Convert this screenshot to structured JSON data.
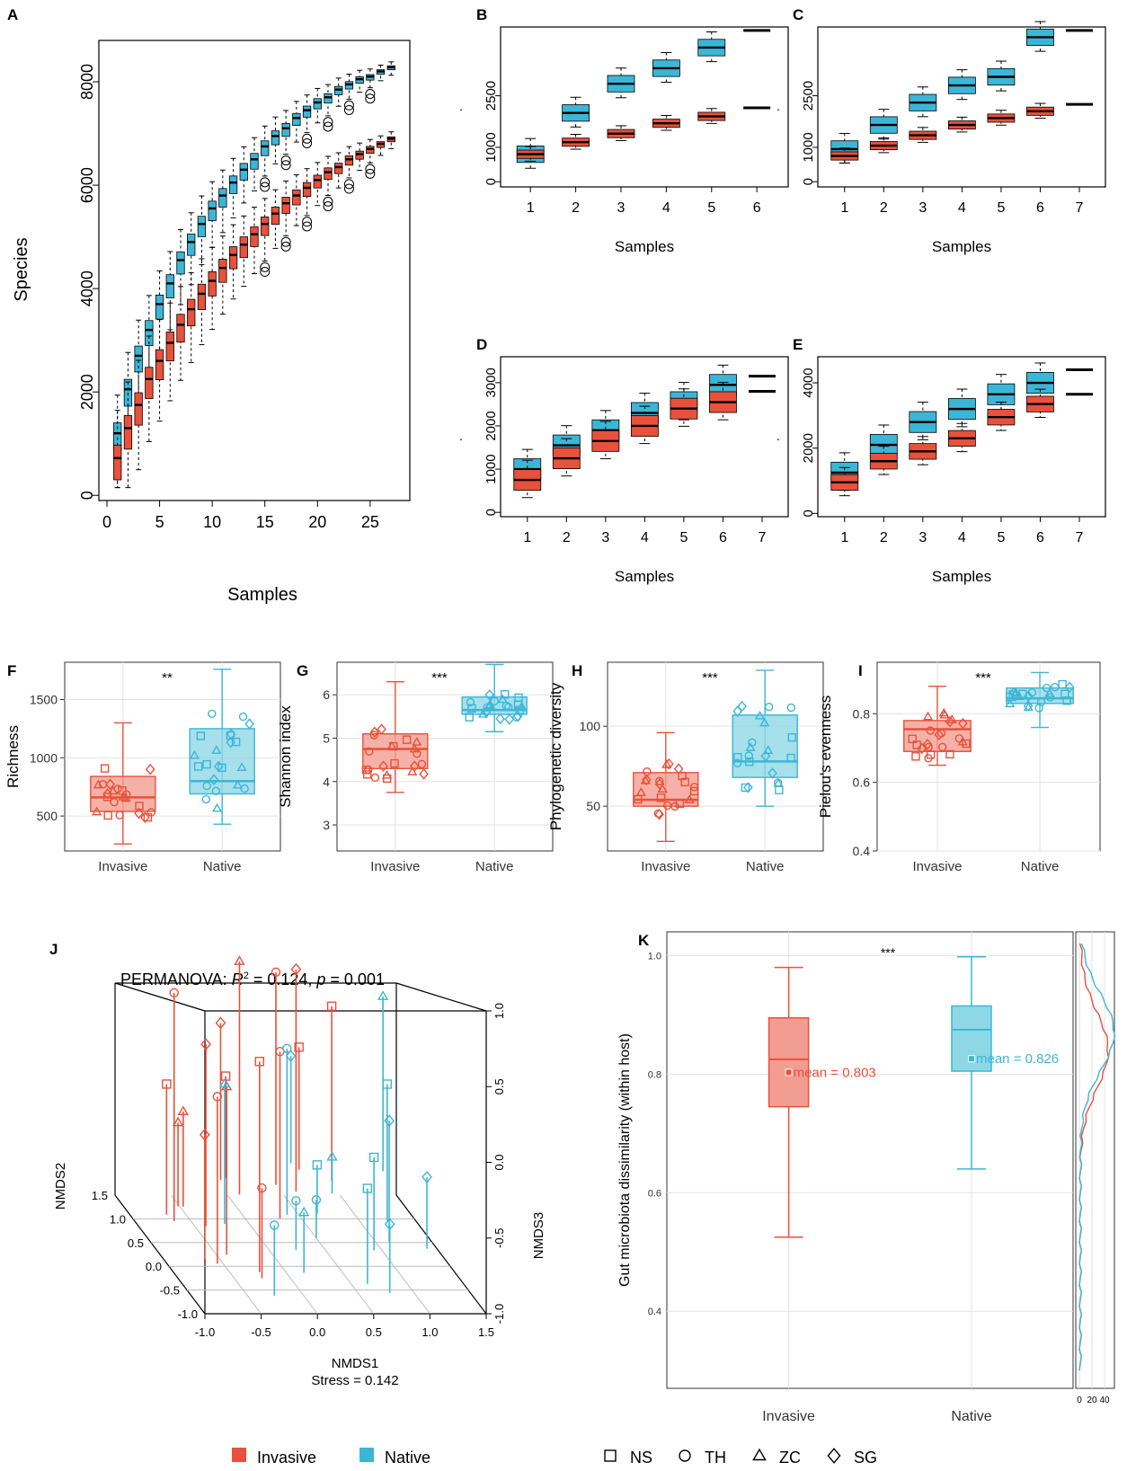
{
  "colors": {
    "invasive": "#E8513B",
    "native": "#3CB6D6",
    "invasive_light": "#F29D91",
    "native_light": "#8ED8E6",
    "frame": "#000000",
    "grid": "#E3E3E3"
  },
  "legend": {
    "groups": [
      {
        "label": "Invasive",
        "color": "#E8513B"
      },
      {
        "label": "Native",
        "color": "#3CB6D6"
      }
    ],
    "shapes": [
      {
        "label": "NS",
        "icon": "square"
      },
      {
        "label": "TH",
        "icon": "circle"
      },
      {
        "label": "ZC",
        "icon": "triangle"
      },
      {
        "label": "SG",
        "icon": "diamond"
      }
    ]
  },
  "chart_data": [
    {
      "panel": "A",
      "type": "boxplot",
      "xlabel": "Samples",
      "ylabel": "Species",
      "xlim": [
        0,
        28
      ],
      "ylim": [
        -100,
        8800
      ],
      "xticks": [
        "0",
        "5",
        "10",
        "15",
        "20",
        "25"
      ],
      "yticks": [
        "0",
        "2000",
        "4000",
        "6000",
        "8000"
      ],
      "series": [
        {
          "name": "Native",
          "x": [
            1,
            2,
            3,
            4,
            5,
            6,
            7,
            8,
            9,
            10,
            11,
            12,
            13,
            14,
            15,
            16,
            17,
            18,
            19,
            20,
            21,
            22,
            23,
            24,
            25,
            26,
            27
          ],
          "median": [
            1200,
            2050,
            2700,
            3200,
            3700,
            4100,
            4550,
            4900,
            5250,
            5550,
            5800,
            6050,
            6300,
            6500,
            6750,
            6950,
            7100,
            7300,
            7450,
            7600,
            7700,
            7850,
            7950,
            8050,
            8100,
            8200,
            8280
          ]
        },
        {
          "name": "Invasive",
          "x": [
            1,
            2,
            3,
            4,
            5,
            6,
            7,
            8,
            9,
            10,
            11,
            12,
            13,
            14,
            15,
            16,
            17,
            18,
            19,
            20,
            21,
            22,
            23,
            24,
            25,
            26,
            27
          ],
          "median": [
            720,
            1300,
            1750,
            2250,
            2600,
            2950,
            3300,
            3600,
            3900,
            4150,
            4400,
            4650,
            4850,
            5050,
            5250,
            5450,
            5650,
            5800,
            5950,
            6100,
            6250,
            6350,
            6500,
            6600,
            6700,
            6800,
            6900
          ]
        }
      ]
    },
    {
      "panel": "B",
      "type": "boxplot",
      "xlabel": "Samples",
      "ylabel": ".",
      "xticks": [
        "1",
        "2",
        "3",
        "4",
        "5",
        "6"
      ],
      "yticks": [
        "0",
        "1000",
        "2500"
      ],
      "ylim": [
        -150,
        4500
      ],
      "series": [
        {
          "name": "Native",
          "median": [
            800,
            2000,
            2850,
            3300,
            3900,
            4400
          ]
        },
        {
          "name": "Invasive",
          "median": [
            800,
            1150,
            1400,
            1700,
            1900,
            2150
          ]
        }
      ]
    },
    {
      "panel": "C",
      "type": "boxplot",
      "xlabel": "Samples",
      "ylabel": ".",
      "xticks": [
        "1",
        "2",
        "3",
        "4",
        "5",
        "6",
        "7"
      ],
      "yticks": [
        "0",
        "1000",
        "2500"
      ],
      "ylim": [
        -150,
        4500
      ],
      "series": [
        {
          "name": "Native",
          "median": [
            950,
            1650,
            2300,
            2800,
            3050,
            4200,
            4400
          ]
        },
        {
          "name": "Invasive",
          "median": [
            750,
            1050,
            1350,
            1650,
            1850,
            2050,
            2250
          ]
        }
      ]
    },
    {
      "panel": "D",
      "type": "boxplot",
      "xlabel": "Samples",
      "ylabel": ".",
      "xticks": [
        "1",
        "2",
        "3",
        "4",
        "5",
        "6",
        "7"
      ],
      "yticks": [
        "0",
        "1000",
        "2000",
        "3000"
      ],
      "ylim": [
        -100,
        3600
      ],
      "series": [
        {
          "name": "Native",
          "median": [
            1000,
            1550,
            1900,
            2300,
            2550,
            2950,
            3150
          ]
        },
        {
          "name": "Invasive",
          "median": [
            750,
            1250,
            1650,
            2000,
            2400,
            2550,
            2800
          ]
        }
      ]
    },
    {
      "panel": "E",
      "type": "boxplot",
      "xlabel": "Samples",
      "ylabel": ".",
      "xticks": [
        "1",
        "2",
        "3",
        "4",
        "5",
        "6",
        "7"
      ],
      "yticks": [
        "0",
        "2000",
        "4000"
      ],
      "ylim": [
        -100,
        4800
      ],
      "series": [
        {
          "name": "Native",
          "median": [
            1250,
            2100,
            2800,
            3200,
            3650,
            4000,
            4400
          ]
        },
        {
          "name": "Invasive",
          "median": [
            950,
            1600,
            1900,
            2300,
            2950,
            3350,
            3650
          ]
        }
      ]
    },
    {
      "panel": "F",
      "type": "boxplot",
      "ylabel": "Richness",
      "significance": "**",
      "categories": [
        "Invasive",
        "Native"
      ],
      "yticks": [
        "500",
        "1000",
        "1500"
      ],
      "ylim": [
        200,
        1820
      ],
      "boxes": [
        {
          "name": "Invasive",
          "min": 260,
          "q1": 540,
          "median": 660,
          "q3": 840,
          "max": 1300
        },
        {
          "name": "Native",
          "min": 430,
          "q1": 690,
          "median": 800,
          "q3": 1250,
          "max": 1760
        }
      ]
    },
    {
      "panel": "G",
      "type": "boxplot",
      "ylabel": "Shannon index",
      "significance": "***",
      "categories": [
        "Invasive",
        "Native"
      ],
      "yticks": [
        "3",
        "4",
        "5",
        "6"
      ],
      "ylim": [
        2.4,
        6.75
      ],
      "boxes": [
        {
          "name": "Invasive",
          "min": 3.75,
          "q1": 4.3,
          "median": 4.75,
          "q3": 5.1,
          "max": 6.3
        },
        {
          "name": "Native",
          "min": 5.15,
          "q1": 5.55,
          "median": 5.65,
          "q3": 5.95,
          "max": 6.7
        }
      ]
    },
    {
      "panel": "H",
      "type": "boxplot",
      "ylabel": "Phylogenetic diversity",
      "significance": "***",
      "categories": [
        "Invasive",
        "Native"
      ],
      "yticks": [
        "50",
        "100"
      ],
      "ylim": [
        22,
        140
      ],
      "boxes": [
        {
          "name": "Invasive",
          "min": 28,
          "q1": 50,
          "median": 54,
          "q3": 71,
          "max": 96
        },
        {
          "name": "Native",
          "min": 50,
          "q1": 68,
          "median": 78,
          "q3": 107,
          "max": 135
        }
      ]
    },
    {
      "panel": "I",
      "type": "boxplot",
      "ylabel": "Pielou's evenness",
      "significance": "***",
      "categories": [
        "Invasive",
        "Native"
      ],
      "yticks": [
        "0.4",
        "0.6",
        "0.8"
      ],
      "ylim": [
        0.4,
        0.95
      ],
      "boxes": [
        {
          "name": "Invasive",
          "min": 0.65,
          "q1": 0.69,
          "median": 0.755,
          "q3": 0.78,
          "max": 0.88
        },
        {
          "name": "Native",
          "min": 0.76,
          "q1": 0.83,
          "median": 0.845,
          "q3": 0.875,
          "max": 0.92
        }
      ]
    },
    {
      "panel": "J",
      "type": "scatter3d",
      "title_prefix": "PERMANOVA: ",
      "r2_symbol": "R",
      "r2_sup": "2",
      "r2_value": " = 0.124, ",
      "p_symbol": "p",
      "p_value": " = 0.001",
      "xlabel": "NMDS1",
      "ylabel": "NMDS2",
      "zlabel": "NMDS3",
      "stress_label": "Stress = 0.142",
      "xticks": [
        "-1.0",
        "-0.5",
        "0.0",
        "0.5",
        "1.0",
        "1.5"
      ],
      "yticks": [
        "-1.0",
        "-0.5",
        "0.0",
        "0.5",
        "1.0",
        "1.5"
      ],
      "zticks": [
        "-1.0",
        "-0.5",
        "0.0",
        "0.5",
        "1.0"
      ]
    },
    {
      "panel": "K",
      "type": "boxplot",
      "ylabel": "Gut microbiota dissimilarity (within host)",
      "significance": "***",
      "categories": [
        "Invasive",
        "Native"
      ],
      "yticks": [
        "0.4",
        "0.6",
        "0.8",
        "1.0"
      ],
      "ylim": [
        0.27,
        1.04
      ],
      "boxes": [
        {
          "name": "Invasive",
          "min": 0.525,
          "q1": 0.745,
          "median": 0.825,
          "q3": 0.895,
          "max": 0.98,
          "mean": 0.803,
          "mean_label": "mean = 0.803"
        },
        {
          "name": "Native",
          "min": 0.64,
          "q1": 0.805,
          "median": 0.875,
          "q3": 0.915,
          "max": 0.998,
          "mean": 0.826,
          "mean_label": "mean = 0.826"
        }
      ],
      "density_xticks": [
        "0",
        "20",
        "40"
      ]
    }
  ]
}
